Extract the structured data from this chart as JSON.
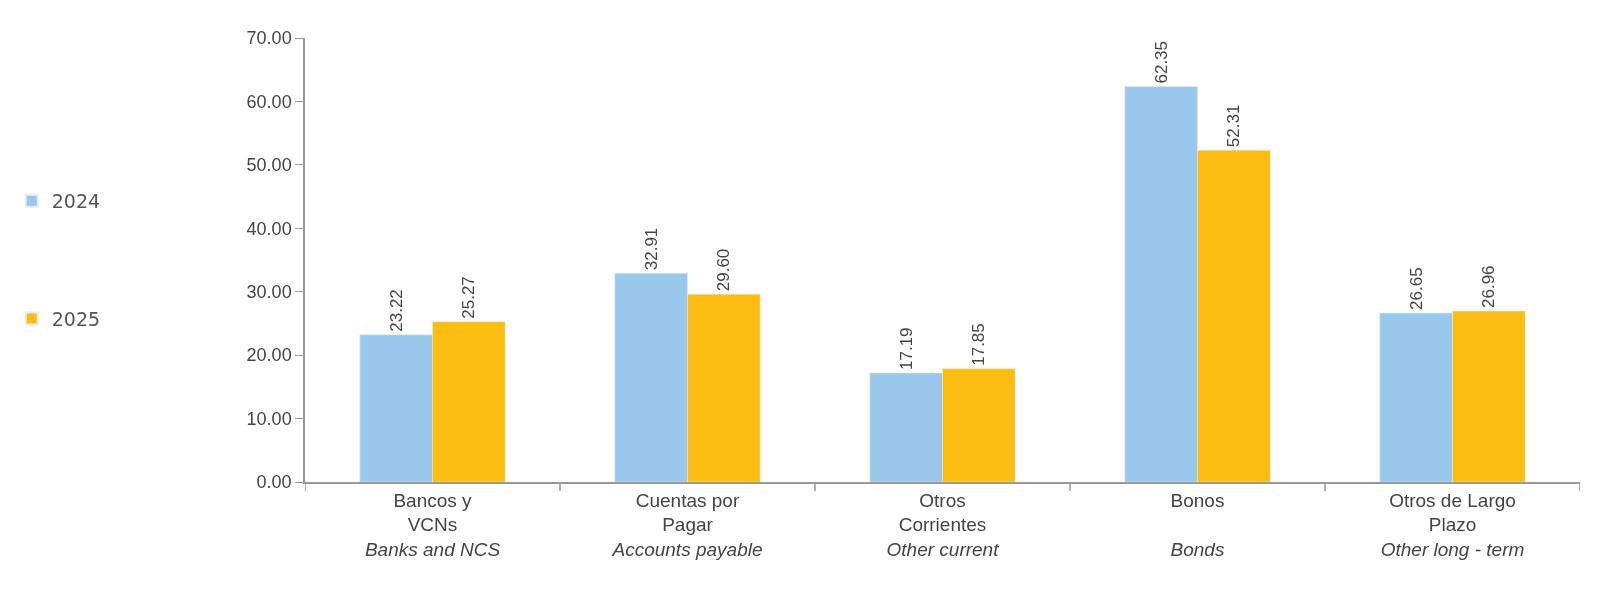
{
  "chart_data": {
    "type": "bar",
    "categories": [
      "Bancos y\nVCNs\nBanks and NCS",
      "Cuentas por\nPagar\nAccounts payable",
      "Otros\nCorrientes\nOther current",
      "Bonos\n\nBonds",
      "Otros de Largo\nPlazo\nOther long - term"
    ],
    "series": [
      {
        "name": "2024",
        "color": "#9ac8ec",
        "values": [
          23.22,
          32.91,
          17.19,
          62.35,
          26.65
        ],
        "value_labels": [
          "23.22",
          "32.91",
          "17.19",
          "62.35",
          "26.65"
        ]
      },
      {
        "name": "2025",
        "color": "#fbbd12",
        "values": [
          25.27,
          29.6,
          17.85,
          52.31,
          26.96
        ],
        "value_labels": [
          "25.27",
          "29.60",
          "17.85",
          "52.31",
          "26.96"
        ]
      }
    ],
    "ylim": [
      0,
      70
    ],
    "yticks": [
      {
        "value": 0,
        "label": "0.00"
      },
      {
        "value": 10,
        "label": "10.00"
      },
      {
        "value": 20,
        "label": "20.00"
      },
      {
        "value": 30,
        "label": "30.00"
      },
      {
        "value": 40,
        "label": "40.00"
      },
      {
        "value": 50,
        "label": "50.00"
      },
      {
        "value": 60,
        "label": "60.00"
      },
      {
        "value": 70,
        "label": "70.00"
      }
    ],
    "legend": "left"
  }
}
